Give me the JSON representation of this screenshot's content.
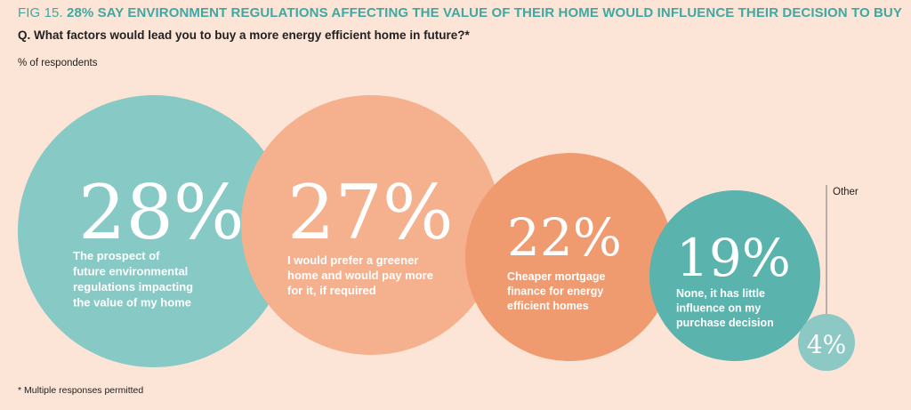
{
  "header": {
    "fig_label": "FIG 15.",
    "headline": "28% SAY ENVIRONMENT REGULATIONS AFFECTING THE VALUE OF THEIR HOME WOULD INFLUENCE THEIR DECISION TO BUY",
    "question": "Q. What factors would lead you to buy a more energy efficient home in future?*",
    "unit": "% of respondents"
  },
  "footnote": "* Multiple responses permitted",
  "colors": {
    "background": "#fce4d6",
    "teal": "#86c9c5",
    "peach": "#f5b08e",
    "orange": "#f09a6f",
    "dark_teal": "#5ab3ad",
    "small_teal": "#8cc9c4"
  },
  "chart_data": {
    "type": "bubble",
    "title": "28% SAY ENVIRONMENT REGULATIONS AFFECTING THE VALUE OF THEIR HOME WOULD INFLUENCE THEIR DECISION TO BUY",
    "unit": "% of respondents",
    "items": [
      {
        "value": 28,
        "label": "28%",
        "text": [
          "The prospect of",
          "future environmental",
          "regulations impacting",
          "the value of my home"
        ]
      },
      {
        "value": 27,
        "label": "27%",
        "text": [
          "I would prefer a greener",
          "home and would pay more",
          "for it, if required"
        ]
      },
      {
        "value": 22,
        "label": "22%",
        "text": [
          "Cheaper mortgage",
          "finance for energy",
          "efficient homes"
        ]
      },
      {
        "value": 19,
        "label": "19%",
        "text": [
          "None, it has little",
          "influence on my",
          "purchase decision"
        ]
      },
      {
        "value": 4,
        "label": "4%",
        "text": [],
        "category": "Other"
      }
    ]
  }
}
